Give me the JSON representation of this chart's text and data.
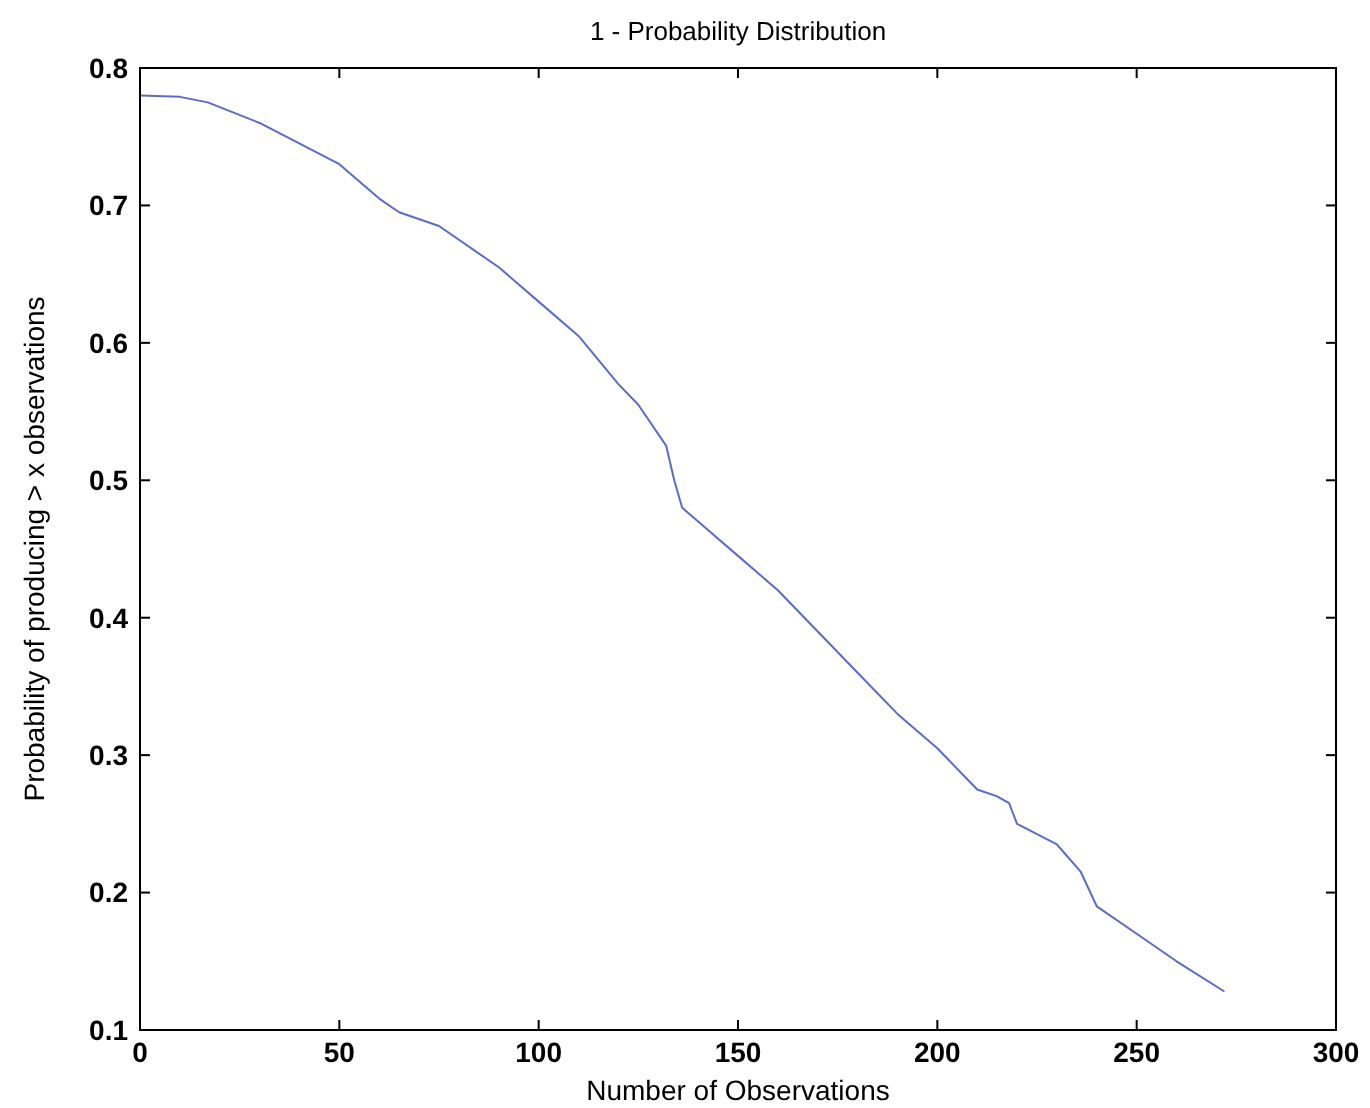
{
  "chart_data": {
    "type": "line",
    "title": "1 - Probability Distribution",
    "xlabel": "Number of Observations",
    "ylabel": "Probability of producing > x observations",
    "xlim": [
      0,
      300
    ],
    "xticks": [
      0,
      50,
      100,
      150,
      200,
      250,
      300
    ],
    "ylim": [
      0.1,
      0.8
    ],
    "yticks": [
      0.1,
      0.2,
      0.3,
      0.4,
      0.5,
      0.6,
      0.7,
      0.8
    ],
    "series": [
      {
        "color": "#5a6cc8",
        "x": [
          0,
          10,
          17,
          30,
          50,
          60,
          65,
          75,
          90,
          100,
          110,
          120,
          125,
          132,
          134,
          136,
          140,
          150,
          160,
          170,
          180,
          190,
          200,
          210,
          215,
          218,
          220,
          230,
          236,
          240,
          250,
          260,
          272
        ],
        "values": [
          0.78,
          0.779,
          0.775,
          0.76,
          0.73,
          0.705,
          0.695,
          0.685,
          0.655,
          0.63,
          0.605,
          0.57,
          0.555,
          0.525,
          0.5,
          0.48,
          0.47,
          0.445,
          0.42,
          0.39,
          0.36,
          0.33,
          0.305,
          0.275,
          0.27,
          0.265,
          0.25,
          0.235,
          0.215,
          0.19,
          0.17,
          0.15,
          0.128
        ]
      }
    ]
  }
}
